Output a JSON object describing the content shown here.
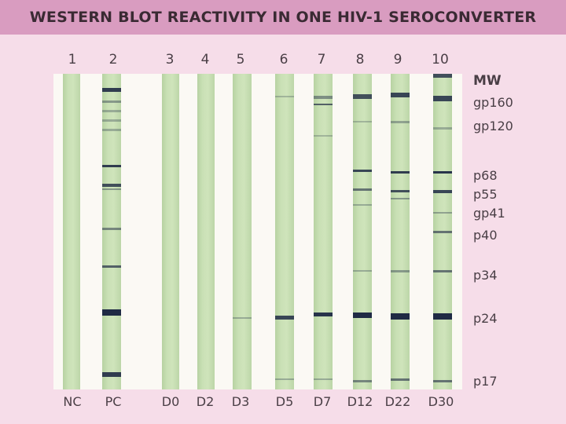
{
  "title": "WESTERN BLOT REACTIVITY IN ONE HIV-1 SEROCONVERTER",
  "lanes": [
    {
      "number": "1",
      "label": "NC"
    },
    {
      "number": "2",
      "label": "PC"
    },
    {
      "number": "3",
      "label": "D0"
    },
    {
      "number": "4",
      "label": "D2"
    },
    {
      "number": "5",
      "label": "D3"
    },
    {
      "number": "6",
      "label": "D5"
    },
    {
      "number": "7",
      "label": "D7"
    },
    {
      "number": "8",
      "label": "D12"
    },
    {
      "number": "9",
      "label": "D22"
    },
    {
      "number": "10",
      "label": "D30"
    }
  ],
  "mw": {
    "header": "MW",
    "markers": [
      "gp160",
      "gp120",
      "p68",
      "p55",
      "gp41",
      "p40",
      "p34",
      "p24",
      "p17"
    ]
  },
  "colors": {
    "band": "#1f2a44",
    "strip": "#c9e0b5",
    "background": "#f6dde9",
    "title_bar": "#d99cc0"
  }
}
